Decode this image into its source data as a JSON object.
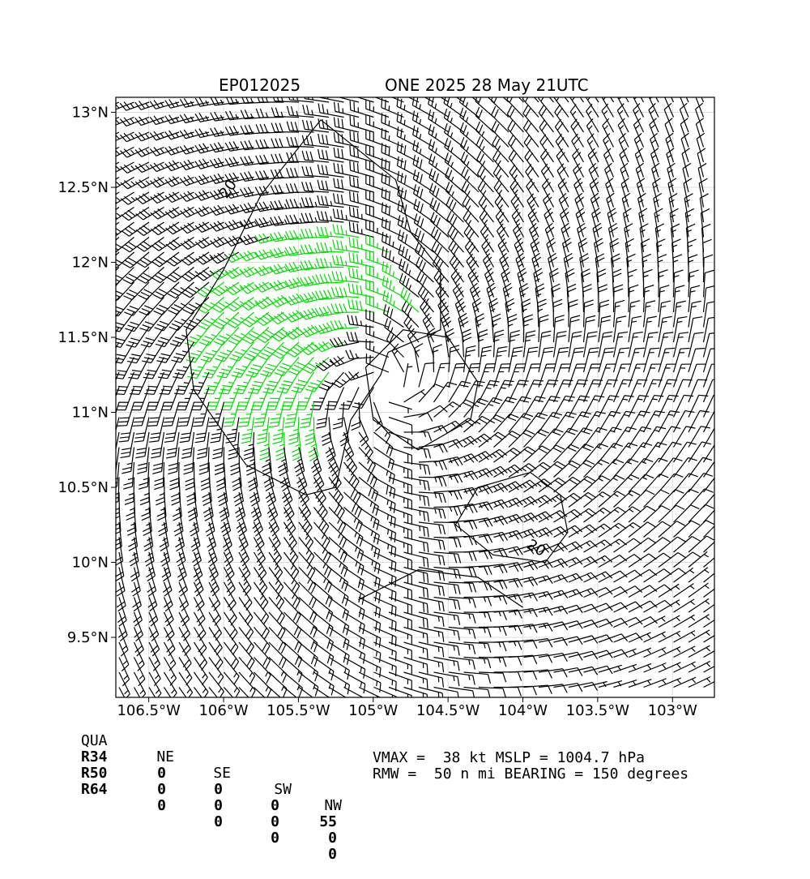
{
  "titles": {
    "left": "EP012025",
    "right": "ONE 2025 28 May 21UTC"
  },
  "chart_data": {
    "type": "wind-barb-map",
    "x_ticks": [
      "106.5°W",
      "106°W",
      "105.5°W",
      "105°W",
      "104.5°W",
      "104°W",
      "103.5°W",
      "103°W"
    ],
    "x_tick_values": [
      -106.5,
      -106.0,
      -105.5,
      -105.0,
      -104.5,
      -104.0,
      -103.5,
      -103.0
    ],
    "y_ticks": [
      "13°N",
      "12.5°N",
      "12°N",
      "11.5°N",
      "11°N",
      "10.5°N",
      "10°N",
      "9.5°N"
    ],
    "y_tick_values": [
      13.0,
      12.5,
      12.0,
      11.5,
      11.0,
      10.5,
      10.0,
      9.5
    ],
    "xlim": [
      -106.72,
      -102.72
    ],
    "ylim": [
      9.1,
      13.1
    ],
    "center": {
      "lon": -104.9,
      "lat": 11.15
    },
    "vmax_kt": 38,
    "rmw_nmi": 50,
    "contour_labels": [
      "20",
      "20"
    ],
    "barb_colors": {
      "below_34": "#000000",
      "r34_to_50": "#00dd00",
      "r50_to_64": "#ffaa00"
    },
    "grid": true
  },
  "radii_table": {
    "header": [
      "QUA",
      "NE",
      "SE",
      "SW",
      "NW"
    ],
    "rows": [
      {
        "label": "R34",
        "values": [
          "0",
          "0",
          "0",
          "55"
        ]
      },
      {
        "label": "R50",
        "values": [
          "0",
          "0",
          "0",
          "0"
        ]
      },
      {
        "label": "R64",
        "values": [
          "0",
          "0",
          "0",
          "0"
        ]
      }
    ]
  },
  "stats": {
    "line1": "VMAX =  38 kt MSLP = 1004.7 hPa",
    "line2": "RMW =  50 n mi BEARING = 150 degrees"
  }
}
